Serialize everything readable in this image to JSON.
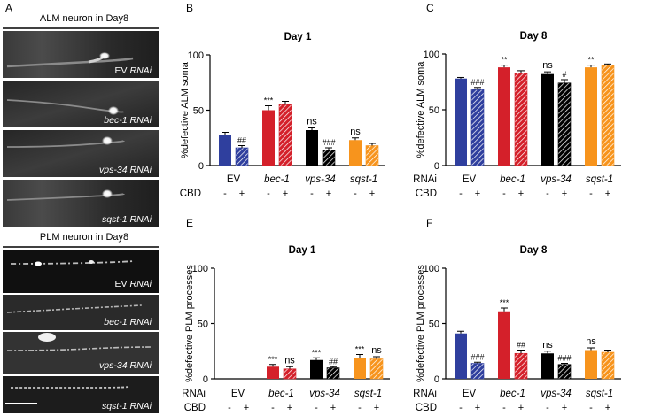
{
  "figure": {
    "panel_letters": [
      "A",
      "B",
      "C",
      "D",
      "E",
      "F"
    ],
    "micro": [
      {
        "title": "ALM neuron in Day8",
        "images": [
          {
            "gene": "EV",
            "suffix": "RNAi"
          },
          {
            "gene": "bec-1",
            "suffix": "RNAi"
          },
          {
            "gene": "vps-34",
            "suffix": "RNAi"
          },
          {
            "gene": "sqst-1",
            "suffix": "RNAi"
          }
        ]
      },
      {
        "title": "PLM neuron in Day8",
        "images": [
          {
            "gene": "EV",
            "suffix": "RNAi"
          },
          {
            "gene": "bec-1",
            "suffix": "RNAi"
          },
          {
            "gene": "vps-34",
            "suffix": "RNAi"
          },
          {
            "gene": "sqst-1",
            "suffix": "RNAi"
          }
        ]
      }
    ],
    "row_labels": {
      "rnai": "RNAi",
      "cbd": "CBD"
    },
    "groups": [
      "EV",
      "bec-1",
      "vps-34",
      "sqst-1"
    ],
    "cbd_signs": [
      "-",
      "+",
      "-",
      "+",
      "-",
      "+",
      "-",
      "+"
    ],
    "colors": {
      "EV": "#2f3f9e",
      "bec-1": "#d4202a",
      "vps-34": "#000000",
      "sqst-1": "#f7941d",
      "hatch": "#ffffff"
    }
  },
  "chart_data": [
    {
      "panel": "B",
      "type": "bar",
      "title": "Day 1",
      "ylabel": "%defective ALM soma",
      "ylim": [
        0,
        100
      ],
      "yticks": [
        "0",
        "50",
        "100"
      ],
      "categories": [
        "EV -",
        "EV +",
        "bec-1 -",
        "bec-1 +",
        "vps-34 -",
        "vps-34 +",
        "sqst-1 -",
        "sqst-1 +"
      ],
      "values": [
        28,
        16,
        50,
        55,
        32,
        14,
        23,
        18
      ],
      "errors": [
        2,
        2,
        4,
        3,
        2,
        2,
        2,
        2
      ],
      "annotations": [
        "",
        "##",
        "***",
        "",
        "ns",
        "###",
        "ns",
        ""
      ],
      "show_rnai_label": false
    },
    {
      "panel": "C",
      "type": "bar",
      "title": "Day 8",
      "ylabel": "%defective ALM soma",
      "ylim": [
        0,
        100
      ],
      "yticks": [
        "0",
        "50",
        "100"
      ],
      "categories": [
        "EV -",
        "EV +",
        "bec-1 -",
        "bec-1 +",
        "vps-34 -",
        "vps-34 +",
        "sqst-1 -",
        "sqst-1 +"
      ],
      "values": [
        78,
        68,
        88,
        83,
        82,
        74,
        88,
        90
      ],
      "errors": [
        1,
        2,
        2,
        2,
        2,
        3,
        2,
        1
      ],
      "annotations": [
        "",
        "###",
        "**",
        "",
        "ns",
        "#",
        "**",
        ""
      ],
      "show_rnai_label": true
    },
    {
      "panel": "E",
      "type": "bar",
      "title": "Day 1",
      "ylabel": "%defective PLM processes",
      "ylim": [
        0,
        100
      ],
      "yticks": [
        "0",
        "50",
        "100"
      ],
      "categories": [
        "EV -",
        "EV +",
        "bec-1 -",
        "bec-1 +",
        "vps-34 -",
        "vps-34 +",
        "sqst-1 -",
        "sqst-1 +"
      ],
      "values": [
        0,
        0,
        11,
        9,
        17,
        10,
        19,
        18
      ],
      "errors": [
        0,
        0,
        2,
        2,
        2,
        1,
        3,
        2
      ],
      "annotations": [
        "",
        "",
        "***",
        "ns",
        "***",
        "##",
        "***",
        "ns"
      ],
      "show_rnai_label": true
    },
    {
      "panel": "F",
      "type": "bar",
      "title": "Day 8",
      "ylabel": "%defective PLM processes",
      "ylim": [
        0,
        100
      ],
      "yticks": [
        "0",
        "50",
        "100"
      ],
      "categories": [
        "EV -",
        "EV +",
        "bec-1 -",
        "bec-1 +",
        "vps-34 -",
        "vps-34 +",
        "sqst-1 -",
        "sqst-1 +"
      ],
      "values": [
        41,
        14,
        61,
        23,
        23,
        13,
        26,
        24
      ],
      "errors": [
        2,
        1,
        3,
        3,
        2,
        1,
        2,
        2
      ],
      "annotations": [
        "",
        "###",
        "***",
        "##",
        "ns",
        "###",
        "ns",
        ""
      ],
      "show_rnai_label": true
    }
  ]
}
